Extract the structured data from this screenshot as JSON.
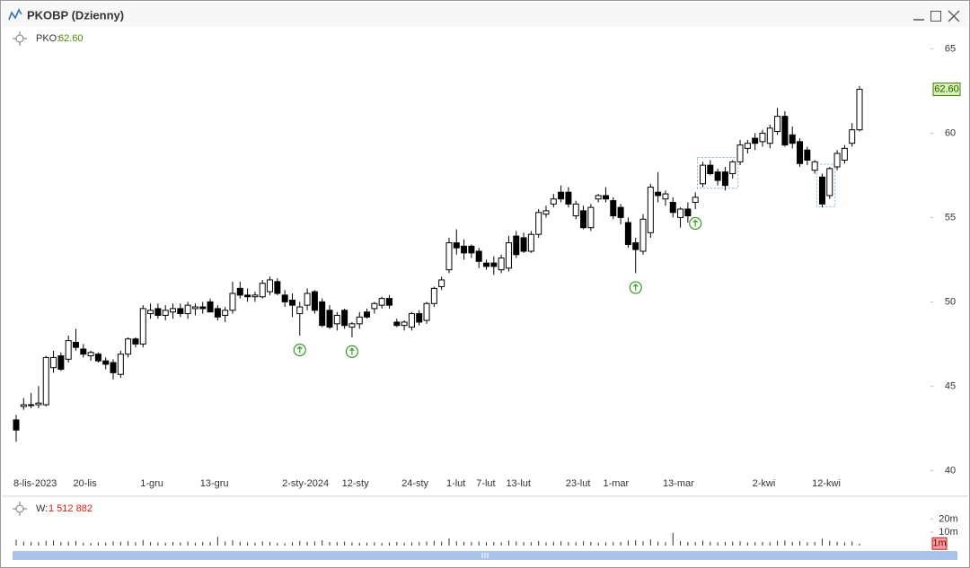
{
  "chart_data": {
    "type": "candlestick",
    "window_title": "PKOBP (Dzienny)",
    "legend_name": "PKO:",
    "last_label": "62.60",
    "categories": [
      "8-lis-2023",
      null,
      null,
      null,
      null,
      null,
      null,
      null,
      "20-lis",
      null,
      null,
      null,
      null,
      null,
      null,
      null,
      null,
      "1-gru",
      null,
      null,
      null,
      null,
      null,
      null,
      null,
      "13-gru",
      null,
      null,
      null,
      null,
      null,
      null,
      null,
      null,
      null,
      null,
      "2-sty-2024",
      null,
      null,
      null,
      null,
      null,
      null,
      null,
      "12-sty",
      null,
      null,
      null,
      null,
      null,
      null,
      null,
      "24-sty",
      null,
      null,
      null,
      null,
      null,
      "1-lut",
      null,
      null,
      null,
      "7-lut",
      null,
      null,
      null,
      "13-lut",
      null,
      null,
      null,
      null,
      null,
      null,
      null,
      "23-lut",
      null,
      null,
      null,
      null,
      "1-mar",
      null,
      null,
      null,
      null,
      null,
      null,
      null,
      "13-mar",
      null,
      null,
      null,
      null,
      null,
      null,
      null,
      null,
      null,
      null,
      null,
      "2-kwi",
      null,
      null,
      null,
      null,
      null,
      null,
      null,
      "12-kwi",
      null,
      null,
      null,
      null,
      null,
      null
    ],
    "open": [
      43.0,
      43.8,
      43.9,
      43.9,
      43.9,
      46.1,
      46.8,
      46.6,
      47.6,
      47.2,
      46.8,
      46.9,
      46.5,
      46.4,
      45.7,
      46.9,
      47.8,
      47.5,
      49.3,
      49.6,
      49.2,
      49.4,
      49.6,
      49.3,
      49.6,
      49.7,
      50.0,
      49.6,
      49.2,
      49.5,
      50.8,
      50.4,
      50.3,
      50.3,
      50.6,
      51.2,
      50.4,
      50.1,
      49.3,
      49.8,
      50.6,
      50.0,
      49.5,
      48.7,
      49.5,
      48.5,
      48.7,
      49.4,
      49.6,
      49.8,
      50.2,
      48.8,
      48.6,
      48.5,
      49.3,
      48.9,
      49.9,
      50.9,
      51.9,
      53.5,
      53.3,
      53.3,
      53.0,
      52.3,
      52.3,
      51.9,
      52.0,
      53.9,
      53.8,
      53.0,
      54.0,
      55.2,
      55.8,
      56.5,
      56.5,
      55.1,
      55.4,
      54.4,
      56.1,
      56.3,
      56.0,
      55.6,
      54.7,
      53.5,
      53.0,
      54.1,
      56.5,
      56.1,
      55.9,
      55.0,
      55.5,
      55.9,
      57.0,
      58.1,
      57.7,
      57.7,
      57.6,
      58.3,
      59.1,
      59.7,
      59.5,
      59.4,
      60.1,
      61.0,
      59.9,
      59.5,
      59.0,
      57.8,
      57.4,
      56.3,
      58.0,
      58.4,
      59.4,
      60.2
    ],
    "high": [
      43.3,
      44.3,
      44.6,
      45.0,
      46.8,
      47.1,
      47.0,
      48.0,
      48.4,
      47.5,
      47.1,
      47.0,
      46.7,
      46.6,
      47.1,
      47.9,
      47.9,
      49.8,
      49.9,
      49.9,
      49.8,
      49.9,
      49.9,
      50.0,
      49.9,
      50.0,
      50.2,
      49.8,
      49.7,
      51.2,
      51.2,
      50.8,
      50.6,
      51.3,
      51.5,
      51.4,
      50.7,
      50.5,
      50.0,
      50.8,
      50.7,
      50.2,
      49.8,
      49.4,
      49.6,
      48.8,
      49.4,
      49.6,
      50.0,
      50.3,
      50.4,
      49.0,
      48.9,
      49.4,
      49.5,
      50.0,
      50.9,
      51.5,
      53.8,
      54.3,
      53.7,
      53.4,
      53.2,
      52.5,
      52.7,
      52.8,
      53.9,
      54.2,
      54.1,
      54.2,
      55.5,
      55.7,
      56.4,
      56.9,
      56.8,
      56.0,
      55.7,
      55.8,
      56.4,
      56.8,
      56.2,
      55.8,
      55.0,
      53.8,
      55.2,
      57.0,
      57.7,
      56.6,
      56.2,
      55.6,
      55.9,
      56.5,
      58.3,
      58.4,
      57.9,
      58.0,
      58.4,
      59.6,
      59.6,
      60.0,
      60.2,
      60.5,
      61.5,
      61.3,
      60.4,
      59.7,
      59.2,
      58.4,
      57.6,
      58.0,
      59.0,
      59.3,
      60.6,
      62.8
    ],
    "low": [
      41.7,
      43.6,
      43.7,
      43.7,
      43.8,
      45.8,
      45.9,
      46.4,
      47.1,
      46.7,
      46.5,
      46.4,
      46.0,
      45.4,
      45.5,
      46.7,
      47.3,
      47.3,
      49.0,
      49.0,
      48.9,
      49.0,
      49.1,
      49.0,
      49.2,
      49.3,
      49.4,
      48.9,
      48.8,
      49.3,
      50.2,
      50.0,
      50.0,
      50.2,
      50.4,
      50.4,
      49.7,
      49.1,
      48.0,
      49.5,
      49.3,
      48.5,
      48.4,
      48.3,
      48.4,
      47.9,
      48.4,
      49.0,
      49.3,
      49.6,
      49.6,
      48.5,
      48.3,
      48.3,
      48.6,
      48.7,
      49.7,
      50.7,
      51.7,
      52.8,
      52.5,
      52.6,
      52.0,
      51.9,
      51.6,
      51.7,
      51.8,
      52.6,
      52.9,
      52.9,
      53.8,
      55.0,
      55.6,
      55.9,
      55.6,
      54.9,
      54.3,
      54.2,
      55.9,
      55.9,
      54.9,
      54.6,
      53.2,
      51.7,
      52.8,
      53.8,
      55.9,
      55.7,
      55.0,
      54.4,
      54.7,
      55.5,
      56.8,
      57.5,
      56.9,
      56.6,
      57.3,
      58.1,
      58.8,
      59.0,
      59.2,
      59.1,
      59.9,
      59.2,
      59.1,
      58.0,
      58.1,
      57.6,
      55.6,
      56.1,
      57.8,
      58.2,
      59.2,
      60.1
    ],
    "close": [
      42.4,
      43.9,
      43.9,
      44.0,
      46.7,
      46.7,
      46.0,
      47.7,
      47.3,
      46.9,
      47.0,
      46.5,
      46.3,
      45.8,
      46.9,
      47.8,
      47.5,
      49.6,
      49.5,
      49.2,
      49.5,
      49.6,
      49.3,
      49.8,
      49.7,
      49.6,
      49.4,
      49.1,
      49.5,
      50.5,
      50.4,
      50.3,
      50.4,
      51.1,
      51.3,
      50.5,
      50.0,
      49.8,
      49.7,
      50.5,
      49.5,
      48.6,
      48.5,
      49.2,
      48.6,
      48.7,
      49.1,
      49.1,
      49.9,
      50.2,
      49.8,
      48.6,
      48.8,
      49.3,
      48.8,
      49.9,
      50.8,
      51.3,
      53.5,
      53.2,
      52.9,
      52.9,
      52.4,
      52.1,
      52.1,
      52.6,
      53.5,
      52.8,
      53.0,
      54.0,
      55.3,
      55.4,
      56.1,
      56.1,
      55.8,
      55.8,
      54.4,
      55.6,
      56.3,
      56.1,
      55.1,
      55.0,
      53.4,
      53.1,
      54.9,
      56.8,
      56.3,
      56.4,
      55.3,
      55.5,
      55.1,
      56.2,
      58.1,
      57.6,
      57.2,
      56.9,
      58.3,
      59.3,
      59.4,
      59.4,
      60.0,
      60.3,
      61.0,
      59.3,
      59.4,
      58.2,
      58.4,
      58.3,
      55.8,
      57.9,
      58.8,
      59.1,
      60.2,
      62.6
    ],
    "up_color": "#ffffff",
    "down_color": "#000000",
    "ylim": [
      39.7,
      66.3
    ],
    "yticks": [
      40,
      45,
      50,
      55,
      60,
      65
    ],
    "grid": false,
    "signals": [
      38,
      45,
      83,
      91
    ],
    "signal_color": "#3a9a2a",
    "patterns": [
      {
        "from": 92,
        "to": 96
      },
      {
        "from": 108,
        "to": 109
      }
    ],
    "volume": {
      "name": "W:",
      "last_label": "1 512 882",
      "tag": "1m",
      "color": "#333333",
      "ylim": [
        0,
        29000000
      ],
      "yticks": [
        {
          "value": 20000000,
          "label": "20m"
        },
        {
          "value": 10000000,
          "label": "10m"
        }
      ],
      "values": [
        4500000,
        3000000,
        2800000,
        2500000,
        3500000,
        3800000,
        2600000,
        3000000,
        3400000,
        2200000,
        2000000,
        2400000,
        2300000,
        3100000,
        2900000,
        3300000,
        2500000,
        4200000,
        2600000,
        2300000,
        2100000,
        2700000,
        2400000,
        3000000,
        2200000,
        2600000,
        2800000,
        6500000,
        3200000,
        4000000,
        2900000,
        2400000,
        2200000,
        3100000,
        2800000,
        2000000,
        1800000,
        2500000,
        3400000,
        2900000,
        3100000,
        4000000,
        2700000,
        2600000,
        3000000,
        2400000,
        2100000,
        2200000,
        2500000,
        2000000,
        2300000,
        2800000,
        2200000,
        2400000,
        2600000,
        3100000,
        3600000,
        3000000,
        5400000,
        3200000,
        2900000,
        2600000,
        3000000,
        2500000,
        2700000,
        2400000,
        3800000,
        3100000,
        2600000,
        2500000,
        3500000,
        2400000,
        2900000,
        3300000,
        2600000,
        2500000,
        3200000,
        2800000,
        2200000,
        2400000,
        2600000,
        2700000,
        3900000,
        4100000,
        3200000,
        4600000,
        3000000,
        2500000,
        9600000,
        3400000,
        2800000,
        2600000,
        3700000,
        2900000,
        2500000,
        2800000,
        3000000,
        3200000,
        2400000,
        2600000,
        2700000,
        2500000,
        3600000,
        3900000,
        2800000,
        3300000,
        2500000,
        2700000,
        5200000,
        3600000,
        2900000,
        2400000,
        3100000,
        1512882
      ]
    }
  }
}
